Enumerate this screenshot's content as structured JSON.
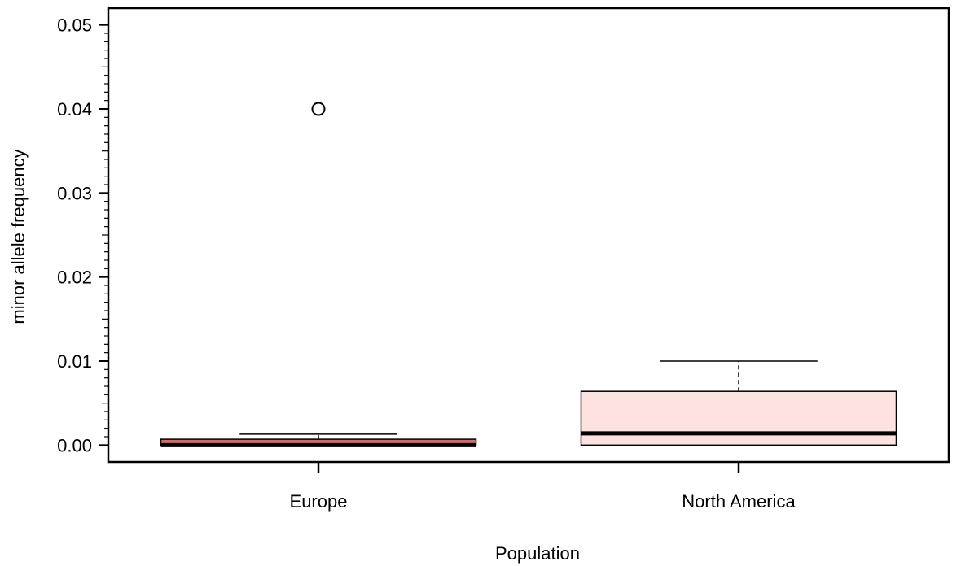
{
  "chart_data": {
    "type": "box",
    "title": "",
    "xlabel": "Population",
    "ylabel": "minor allele frequency",
    "ylim": [
      -0.002,
      0.052
    ],
    "yticks": [
      "0.00",
      "0.01",
      "0.02",
      "0.03",
      "0.04",
      "0.05"
    ],
    "grid": false,
    "categories": [
      "Europe",
      "North America"
    ],
    "boxes": [
      {
        "category": "Europe",
        "whisker_low": 0.0,
        "q1": 0.0,
        "median": 0.0,
        "q3": 0.0007,
        "whisker_high": 0.0013,
        "outliers": [
          0.04
        ],
        "fill": "#e06666"
      },
      {
        "category": "North America",
        "whisker_low": 0.0,
        "q1": 0.0,
        "median": 0.0014,
        "q3": 0.0064,
        "whisker_high": 0.01,
        "outliers": [],
        "fill": "#fde2e0"
      }
    ]
  }
}
